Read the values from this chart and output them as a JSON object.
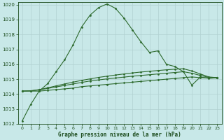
{
  "x": [
    0,
    1,
    2,
    3,
    4,
    5,
    6,
    7,
    8,
    9,
    10,
    11,
    12,
    13,
    14,
    15,
    16,
    17,
    18,
    19,
    20,
    21,
    22,
    23
  ],
  "y_main": [
    1012.2,
    1013.3,
    1014.2,
    1014.7,
    1015.5,
    1016.3,
    1017.3,
    1018.5,
    1019.3,
    1019.8,
    1020.05,
    1019.75,
    1019.1,
    1018.3,
    1017.5,
    1016.8,
    1016.9,
    1016.0,
    1015.85,
    1015.5,
    1014.6,
    1015.15,
    1015.05,
    1015.1
  ],
  "y_flat1": [
    1014.2,
    1014.2,
    1014.2,
    1014.25,
    1014.3,
    1014.35,
    1014.4,
    1014.5,
    1014.55,
    1014.6,
    1014.65,
    1014.7,
    1014.75,
    1014.8,
    1014.85,
    1014.9,
    1014.95,
    1015.0,
    1015.05,
    1015.1,
    1015.15,
    1015.1,
    1015.1,
    1015.1
  ],
  "y_flat2": [
    1014.2,
    1014.22,
    1014.28,
    1014.38,
    1014.48,
    1014.58,
    1014.68,
    1014.78,
    1014.88,
    1014.95,
    1015.02,
    1015.08,
    1015.14,
    1015.2,
    1015.25,
    1015.3,
    1015.35,
    1015.4,
    1015.45,
    1015.5,
    1015.4,
    1015.25,
    1015.12,
    1015.1
  ],
  "y_flat3": [
    1014.2,
    1014.22,
    1014.3,
    1014.42,
    1014.55,
    1014.68,
    1014.8,
    1014.92,
    1015.02,
    1015.12,
    1015.2,
    1015.28,
    1015.35,
    1015.42,
    1015.48,
    1015.53,
    1015.58,
    1015.63,
    1015.67,
    1015.7,
    1015.55,
    1015.35,
    1015.15,
    1015.1
  ],
  "ylim": [
    1012,
    1020
  ],
  "xlim": [
    -0.5,
    23.5
  ],
  "yticks": [
    1012,
    1013,
    1014,
    1015,
    1016,
    1017,
    1018,
    1019,
    1020
  ],
  "xticks": [
    0,
    1,
    2,
    3,
    4,
    5,
    6,
    7,
    8,
    9,
    10,
    11,
    12,
    13,
    14,
    15,
    16,
    17,
    18,
    19,
    20,
    21,
    22,
    23
  ],
  "line_color": "#2d6a2d",
  "marker": "D",
  "marker_size": 1.5,
  "bg_color": "#c8e8e8",
  "grid_color": "#b0d0d0",
  "xlabel": "Graphe pression niveau de la mer (hPa)",
  "xlabel_color": "#1a4a1a",
  "tick_color": "#1a4a1a",
  "line_width": 0.8
}
